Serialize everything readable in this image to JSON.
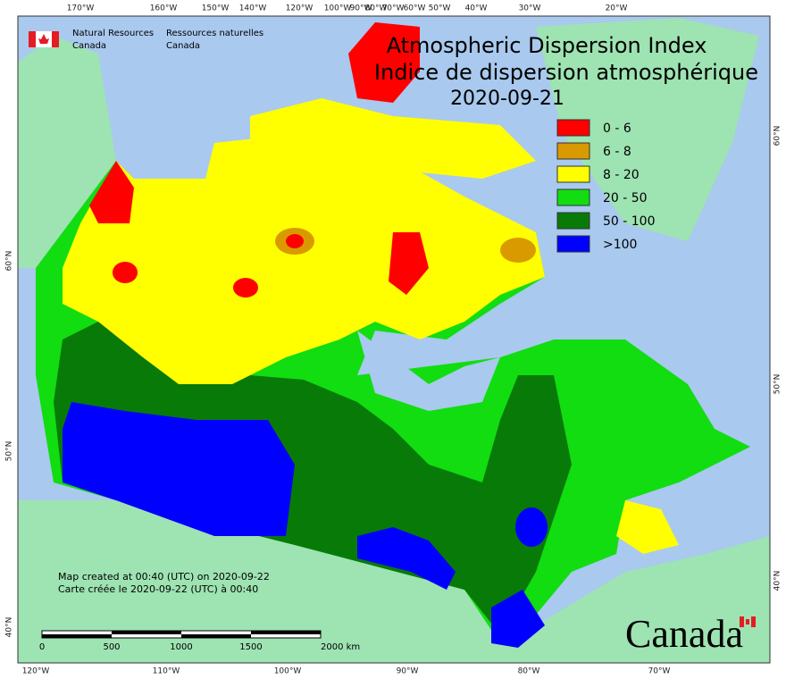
{
  "agency": {
    "en": [
      "Natural Resources",
      "Canada"
    ],
    "fr": [
      "Ressources naturelles",
      "Canada"
    ]
  },
  "title": {
    "en": "Atmospheric Dispersion Index",
    "fr": "Indice de dispersion atmosphérique",
    "date": "2020-09-21"
  },
  "legend": [
    {
      "label": "0 - 6",
      "color": "#ff0000"
    },
    {
      "label": "6 - 8",
      "color": "#d99a00"
    },
    {
      "label": "8 - 20",
      "color": "#ffff00"
    },
    {
      "label": "20 - 50",
      "color": "#11dd11"
    },
    {
      "label": "50 - 100",
      "color": "#087a08"
    },
    {
      "label": ">100",
      "color": "#0000ff"
    }
  ],
  "graticule": {
    "top": [
      "170°W",
      "160°W",
      "150°W",
      "140°W",
      "120°W",
      "100°W",
      "90°W",
      "80°W",
      "70°W",
      "60°W",
      "50°W",
      "40°W",
      "30°W",
      "20°W"
    ],
    "bottom": [
      "120°W",
      "110°W",
      "100°W",
      "90°W",
      "80°W",
      "70°W"
    ],
    "left": [
      "60°N",
      "50°N",
      "40°N"
    ],
    "right": [
      "60°N",
      "50°N",
      "40°N"
    ]
  },
  "notes": [
    "Map created at 00:40 (UTC) on 2020-09-22",
    "Carte créée le 2020-09-22 (UTC) à 00:40"
  ],
  "scale": [
    "0",
    "500",
    "1000",
    "1500",
    "2000 km"
  ],
  "wordmark": "Canada"
}
